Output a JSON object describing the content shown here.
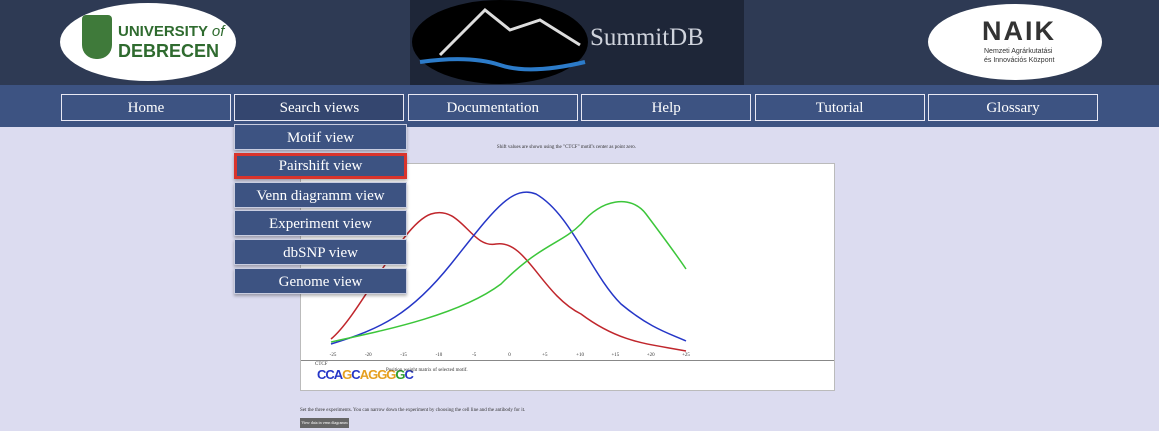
{
  "header": {
    "university": "UNIVERSITY",
    "of": "of",
    "debrecen": "DEBRECEN",
    "site_title": "SummitDB",
    "naik": "NAIK",
    "naik_line1": "Nemzeti Agrárkutatási",
    "naik_line2": "és Innovációs Központ"
  },
  "nav": {
    "items": [
      "Home",
      "Search views",
      "Documentation",
      "Help",
      "Tutorial",
      "Glossary"
    ],
    "open_index": 1
  },
  "dropdown": {
    "items": [
      "Motif view",
      "Pairshift view",
      "Venn diagramm view",
      "Experiment view",
      "dbSNP view",
      "Genome view"
    ],
    "highlighted_index": 1
  },
  "content": {
    "note": "Shift values are shown using the \"CTCF\" motif's center as point zero.",
    "x_ticks": [
      "-25",
      "-20",
      "-15",
      "-10",
      "-5",
      "0",
      "+5",
      "+10",
      "+15",
      "+20",
      "+25"
    ],
    "motif_name": "CTCF",
    "pwm_caption": "Position weight matrix of selected motif.",
    "instructions": "Set the three experiments. You can narrow down the experiment by choosing the cell line and the antibody for it.",
    "button": "View data in venn diagramm"
  }
}
